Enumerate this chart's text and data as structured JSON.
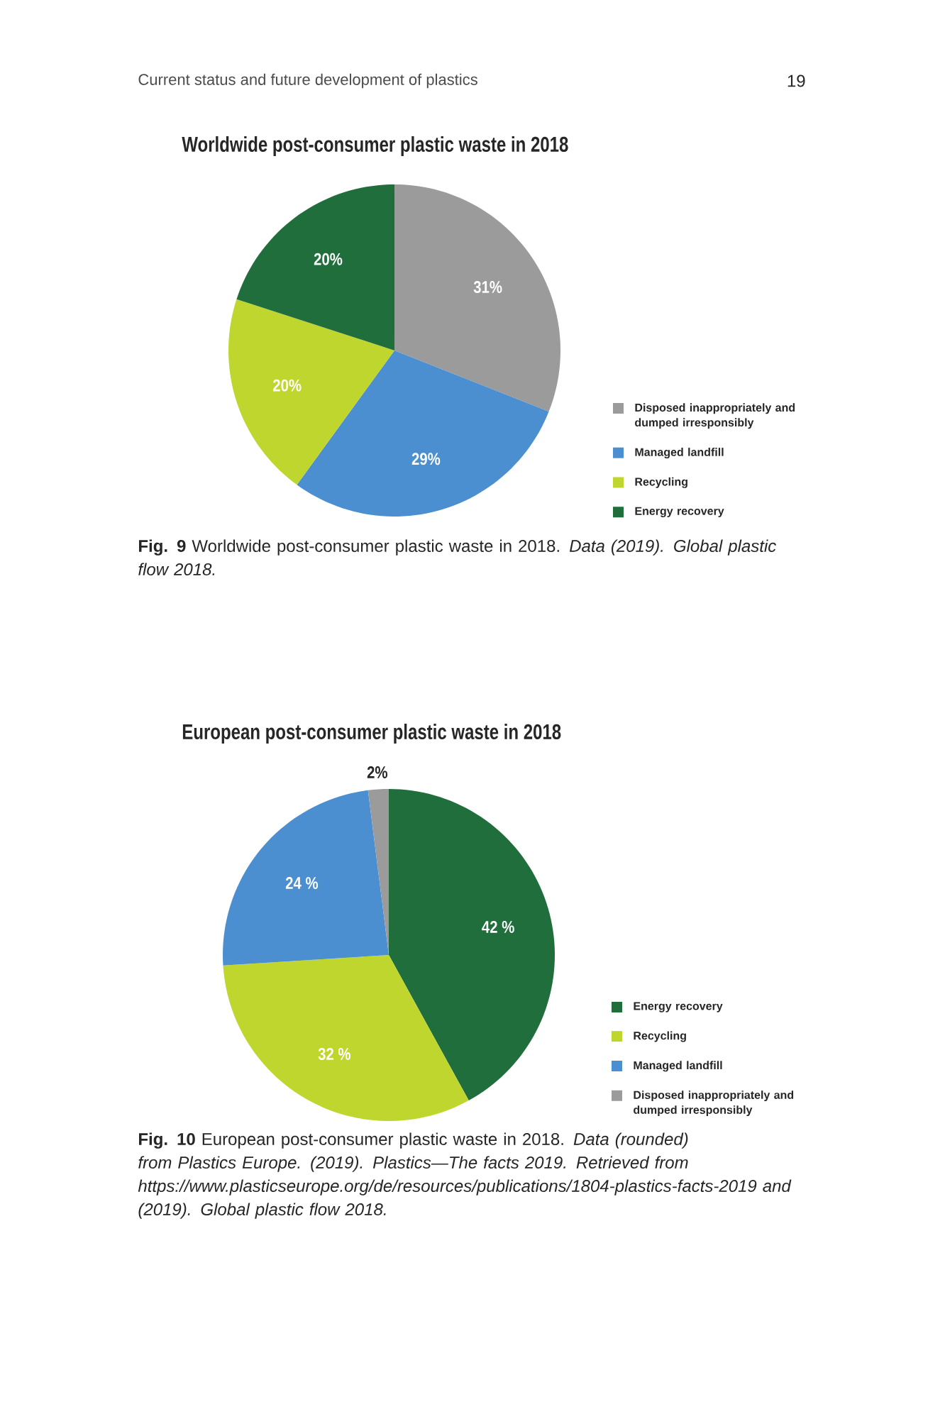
{
  "chart_data": [
    {
      "type": "pie",
      "title": "Worldwide post-consumer plastic waste in 2018",
      "categories": [
        "Disposed inappropriately and dumped irresponsibly",
        "Managed landfill",
        "Recycling",
        "Energy recovery"
      ],
      "values": [
        31,
        29,
        20,
        20
      ],
      "colors": [
        "#9b9b9b",
        "#4b8fd1",
        "#bfd62f",
        "#1f6e3b"
      ],
      "value_labels": [
        "31%",
        "29%",
        "20%",
        "20%"
      ],
      "legend": "bottom right",
      "annotations": [
        "Current status and future development of plastics",
        "19",
        "**Fig. 9** Worldwide post-consumer plastic waste in 2018. *Data (2019). Global plastic flow 2018.*"
      ]
    },
    {
      "type": "pie",
      "title": "European post-consumer plastic waste in 2018",
      "categories": [
        "Energy recovery",
        "Recycling",
        "Managed landfill",
        "Disposed inappropriately and dumped irresponsibly"
      ],
      "values": [
        42,
        32,
        24,
        2
      ],
      "colors": [
        "#1f6e3b",
        "#bfd62f",
        "#4b8fd1",
        "#9b9b9b"
      ],
      "value_labels": [
        "42 %",
        "32 %",
        "24 %",
        "2%"
      ],
      "legend": "bottom right",
      "annotations": [
        "**Fig. 10** European post-consumer plastic waste in 2018. *Data (rounded) from Plastics Europe. (2019). Plastics—The facts 2019. Retrieved from https://www.plasticseurope.org/de/resources/publications/1804-plastics-facts-2019 and (2019). Global plastic flow 2018.*"
      ]
    }
  ]
}
